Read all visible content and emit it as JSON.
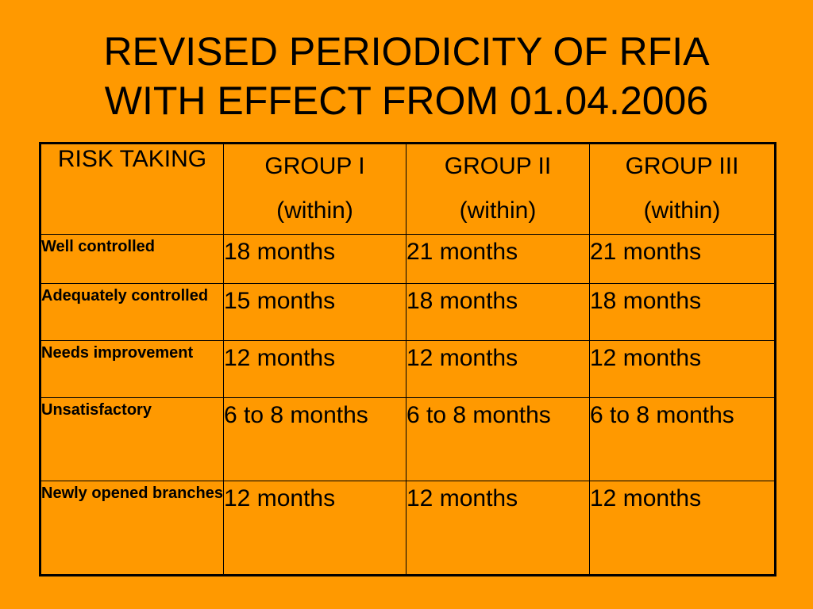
{
  "title": {
    "line1": "REVISED PERIODICITY OF RFIA",
    "line2": "WITH EFFECT FROM 01.04.2006"
  },
  "table": {
    "risk_header": "RISK TAKING",
    "groups": [
      {
        "name": "GROUP I",
        "qualifier": "(within)"
      },
      {
        "name": "GROUP II",
        "qualifier": "(within)"
      },
      {
        "name": "GROUP III",
        "qualifier": "(within)"
      }
    ],
    "rows": [
      {
        "label": "Well controlled",
        "values": [
          "18 months",
          "21 months",
          "21 months"
        ]
      },
      {
        "label": "Adequately controlled",
        "values": [
          "15 months",
          "18 months",
          "18 months"
        ]
      },
      {
        "label": "Needs improvement",
        "values": [
          "12 months",
          "12 months",
          "12 months"
        ]
      },
      {
        "label": "Unsatisfactory",
        "values": [
          "6 to 8 months",
          "6 to 8 months",
          "6 to 8 months"
        ]
      },
      {
        "label": "Newly opened branches",
        "values": [
          "12 months",
          "12 months",
          "12 months"
        ]
      }
    ]
  },
  "colors": {
    "background": "#FF9900",
    "text": "#000000",
    "border": "#000000"
  }
}
